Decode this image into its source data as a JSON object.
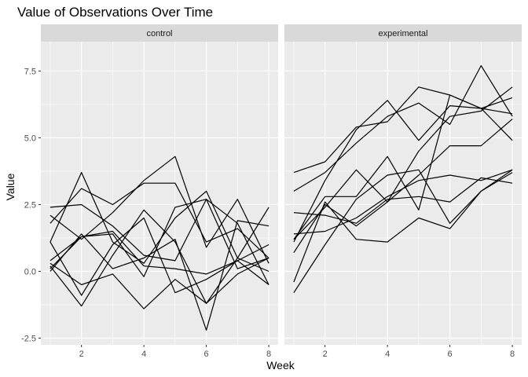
{
  "chart_data": {
    "type": "line",
    "title": "Value of Observations Over Time",
    "xlabel": "Week",
    "ylabel": "Value",
    "xlim": [
      0.7,
      8.3
    ],
    "ylim": [
      -2.75,
      8.6
    ],
    "x_ticks": [
      2,
      4,
      6,
      8
    ],
    "y_ticks": [
      -2.5,
      0.0,
      2.5,
      5.0,
      7.5
    ],
    "y_tick_labels": [
      "-2.5",
      "0.0",
      "2.5",
      "5.0",
      "7.5"
    ],
    "grid": true,
    "line_color": "#000000",
    "panel_background": "#ebebeb",
    "strip_background": "#d9d9d9",
    "x": [
      1,
      2,
      3,
      4,
      5,
      6,
      7,
      8
    ],
    "panels": [
      {
        "label": "control",
        "series": [
          {
            "values": [
              2.4,
              2.5,
              1.7,
              0.6,
              0.4,
              2.7,
              0.1,
              0.5
            ]
          },
          {
            "values": [
              1.1,
              3.7,
              1.1,
              0.3,
              2.0,
              3.0,
              0.5,
              0.0
            ]
          },
          {
            "values": [
              0.2,
              -1.3,
              0.6,
              2.3,
              1.1,
              -1.2,
              0.5,
              2.4
            ]
          },
          {
            "values": [
              2.1,
              1.2,
              2.2,
              3.4,
              4.3,
              0.9,
              2.7,
              0.3
            ]
          },
          {
            "values": [
              1.8,
              3.1,
              2.5,
              3.3,
              3.3,
              1.1,
              1.6,
              0.5
            ]
          },
          {
            "values": [
              0.0,
              1.4,
              0.1,
              0.5,
              1.2,
              -2.2,
              1.9,
              1.7
            ]
          },
          {
            "values": [
              1.1,
              -0.9,
              1.0,
              2.0,
              -0.8,
              -0.3,
              0.4,
              -0.5
            ]
          },
          {
            "values": [
              0.3,
              -0.5,
              -0.1,
              -1.4,
              -0.3,
              -1.2,
              -0.1,
              0.5
            ]
          },
          {
            "values": [
              0.4,
              1.3,
              1.4,
              -0.2,
              2.4,
              2.7,
              1.8,
              -0.5
            ]
          },
          {
            "values": [
              0.1,
              1.3,
              1.5,
              0.2,
              0.1,
              -0.1,
              0.4,
              1.0
            ]
          }
        ]
      },
      {
        "label": "experimental",
        "series": [
          {
            "values": [
              3.7,
              4.1,
              5.4,
              5.6,
              6.9,
              6.6,
              6.1,
              4.9
            ]
          },
          {
            "values": [
              3.0,
              3.7,
              4.8,
              5.8,
              6.3,
              5.5,
              7.7,
              5.8
            ]
          },
          {
            "values": [
              1.2,
              2.8,
              2.8,
              4.3,
              2.3,
              6.6,
              6.1,
              5.9
            ]
          },
          {
            "values": [
              1.1,
              3.4,
              5.3,
              6.4,
              4.9,
              6.2,
              6.1,
              6.5
            ]
          },
          {
            "values": [
              0.7,
              2.5,
              1.7,
              2.6,
              4.5,
              5.8,
              6.0,
              6.9
            ]
          },
          {
            "values": [
              2.2,
              2.1,
              1.8,
              2.7,
              2.8,
              2.6,
              3.5,
              3.3
            ]
          },
          {
            "values": [
              1.4,
              1.5,
              2.0,
              2.8,
              3.4,
              3.6,
              3.4,
              3.8
            ]
          },
          {
            "values": [
              -0.4,
              2.6,
              1.2,
              1.1,
              2.0,
              1.6,
              3.0,
              3.7
            ]
          },
          {
            "values": [
              1.2,
              2.4,
              3.8,
              2.6,
              3.6,
              4.7,
              4.7,
              5.7
            ]
          },
          {
            "values": [
              -0.8,
              1.0,
              2.7,
              3.6,
              3.8,
              1.8,
              3.0,
              3.8
            ]
          }
        ]
      }
    ]
  }
}
